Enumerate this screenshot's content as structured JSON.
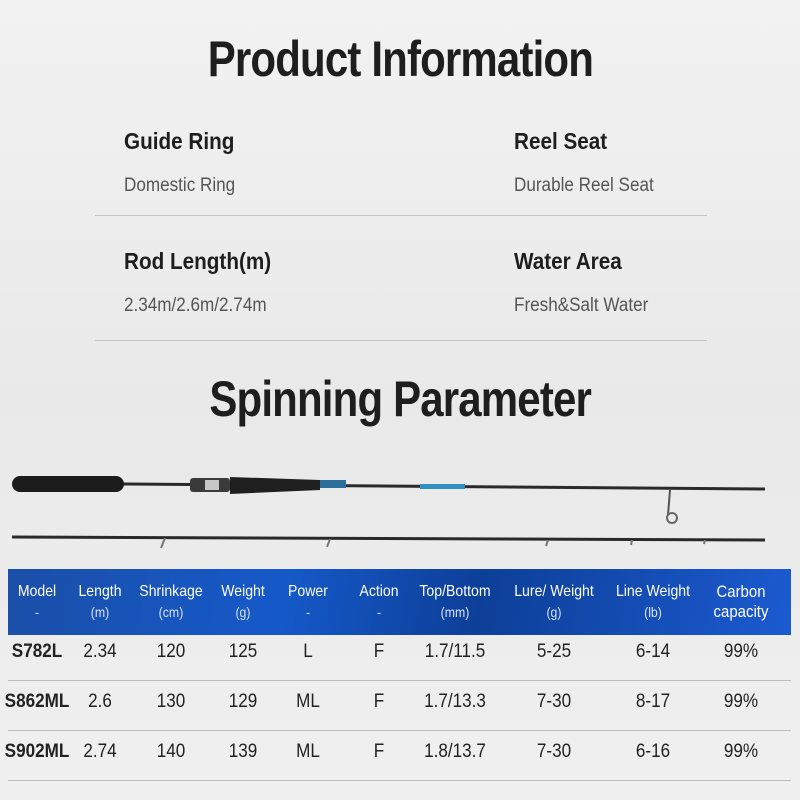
{
  "header": {
    "title": "Product Information"
  },
  "info": [
    {
      "label": "Guide Ring",
      "value": "Domestic Ring"
    },
    {
      "label": "Reel Seat",
      "value": "Durable Reel Seat"
    },
    {
      "label": "Rod Length(m)",
      "value": "2.34m/2.6m/2.74m"
    },
    {
      "label": "Water Area",
      "value": "Fresh&Salt Water"
    }
  ],
  "section": {
    "title": "Spinning Parameter"
  },
  "table": {
    "columns": [
      {
        "name": "Model",
        "unit": "-"
      },
      {
        "name": "Length",
        "unit": "(m)"
      },
      {
        "name": "Shrinkage",
        "unit": "(cm)"
      },
      {
        "name": "Weight",
        "unit": "(g)"
      },
      {
        "name": "Power",
        "unit": "-"
      },
      {
        "name": "Action",
        "unit": "-"
      },
      {
        "name": "Top/Bottom",
        "unit": "(mm)"
      },
      {
        "name": "Lure/ Weight",
        "unit": "(g)"
      },
      {
        "name": "Line Weight",
        "unit": "(lb)"
      },
      {
        "name": "Carbon capacity"
      }
    ],
    "rows": [
      [
        "S782L",
        "2.34",
        "120",
        "125",
        "L",
        "F",
        "1.7/11.5",
        "5-25",
        "6-14",
        "99%"
      ],
      [
        "S862ML",
        "2.6",
        "130",
        "129",
        "ML",
        "F",
        "1.7/13.3",
        "7-30",
        "8-17",
        "99%"
      ],
      [
        "S902ML",
        "2.74",
        "140",
        "139",
        "ML",
        "F",
        "1.8/13.7",
        "7-30",
        "6-16",
        "99%"
      ]
    ]
  }
}
